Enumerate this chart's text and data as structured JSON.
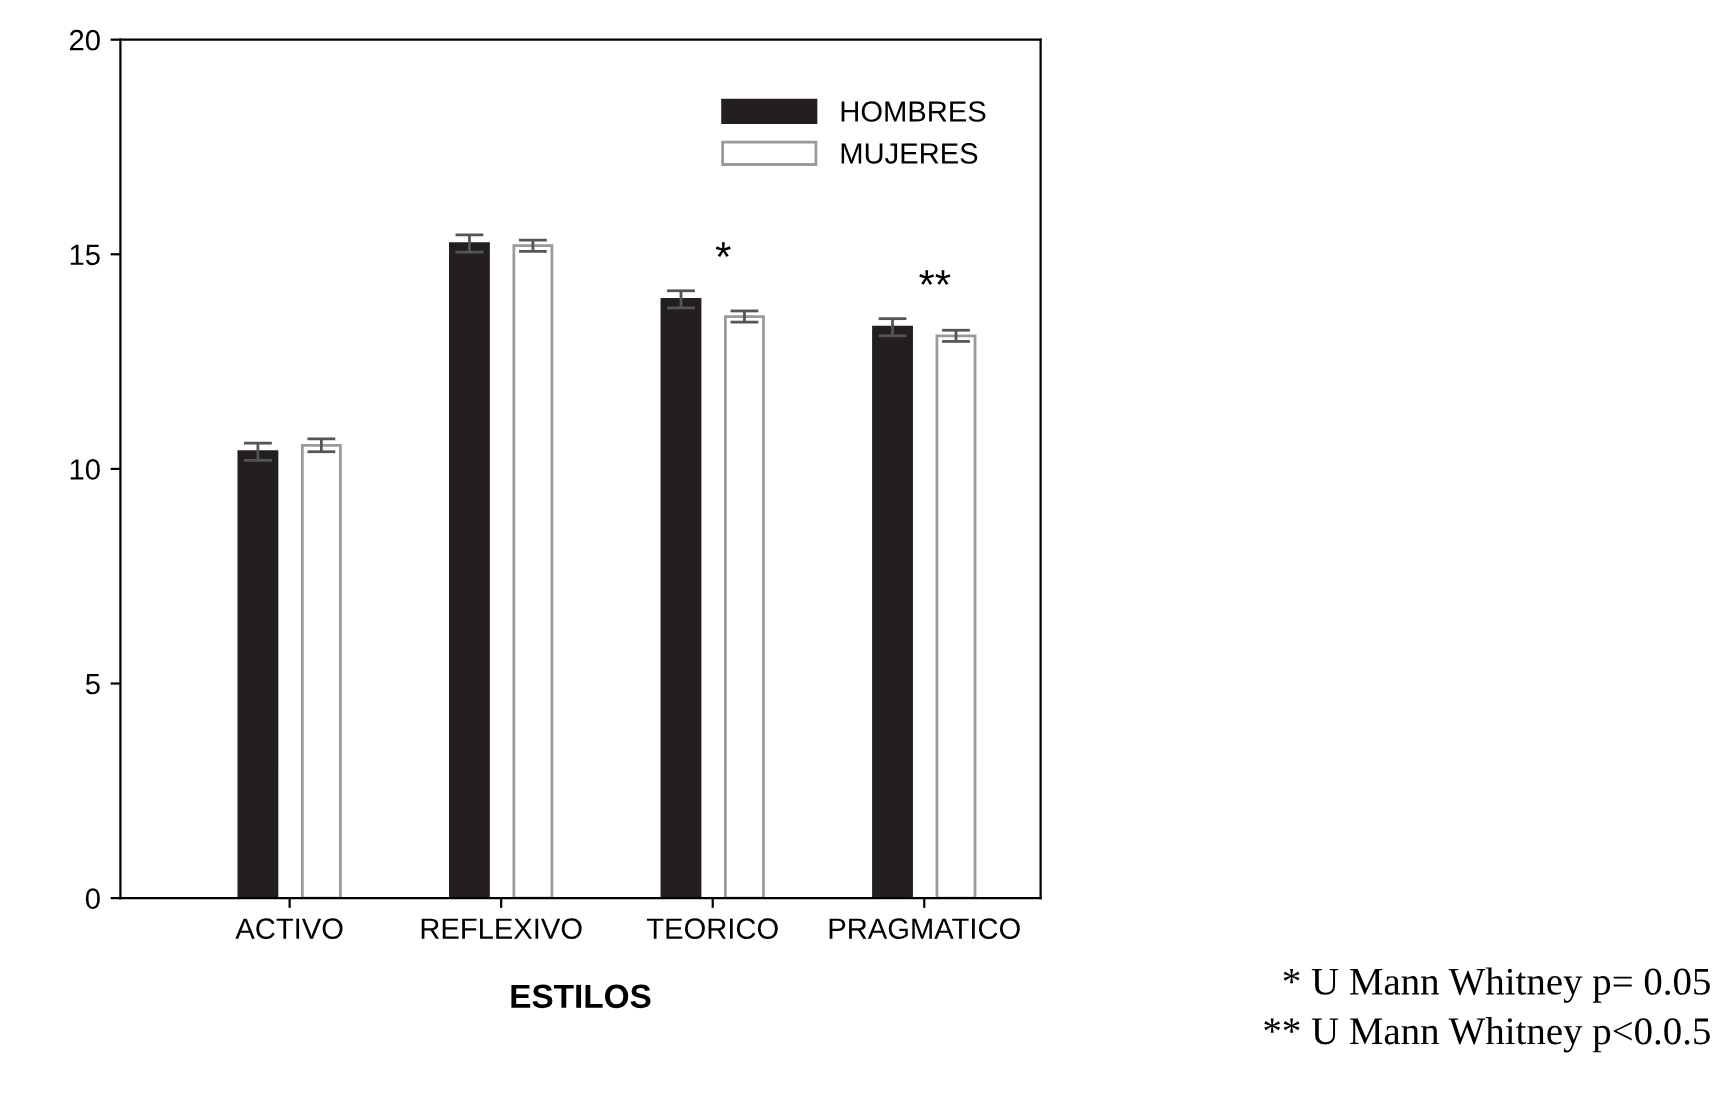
{
  "chart_data": {
    "type": "bar",
    "xlabel": "ESTILOS",
    "categories": [
      "ACTIVO",
      "REFLEXIVO",
      "TEORICO",
      "PRAGMATICO"
    ],
    "series": [
      {
        "name": "HOMBRES",
        "color": "#231f20",
        "values": [
          10.4,
          15.25,
          13.95,
          13.3
        ],
        "errors": [
          0.2,
          0.2,
          0.2,
          0.2
        ]
      },
      {
        "name": "MUJERES",
        "color": "#ffffff",
        "values": [
          10.55,
          15.2,
          13.55,
          13.1
        ],
        "errors": [
          0.15,
          0.13,
          0.13,
          0.13
        ]
      }
    ],
    "ylim": [
      0,
      20
    ],
    "yticks": [
      0,
      5,
      10,
      15,
      20
    ],
    "grid": false,
    "legend": "top right",
    "annotations": [
      "*",
      "**",
      "* U Mann Whitney p= 0.05",
      "** U Mann Whitney p<0.0.5"
    ]
  }
}
